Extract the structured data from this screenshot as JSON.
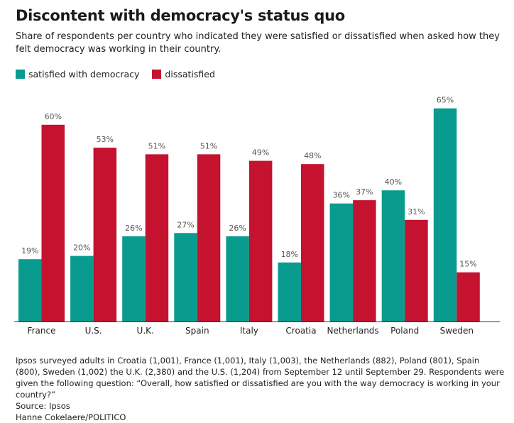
{
  "title": "Discontent with democracy's status quo",
  "subtitle": "Share of respondents per country who indicated they were satisfied or dissatisfied when asked how they felt democracy was working in their country.",
  "legend": {
    "satisfied": {
      "label": "satisfied with democracy",
      "color": "#0a9b8f"
    },
    "dissatisfied": {
      "label": "dissatisfied",
      "color": "#c4122f"
    }
  },
  "chart_data": {
    "type": "bar",
    "title": "Discontent with democracy's status quo",
    "xlabel": "",
    "ylabel": "",
    "ylim": [
      0,
      70
    ],
    "grid": false,
    "legend_position": "top-left",
    "categories": [
      "France",
      "U.S.",
      "U.K.",
      "Spain",
      "Italy",
      "Croatia",
      "Netherlands",
      "Poland",
      "Sweden"
    ],
    "series": [
      {
        "name": "satisfied with democracy",
        "color": "#0a9b8f",
        "values": [
          19,
          20,
          26,
          27,
          26,
          18,
          36,
          40,
          65
        ]
      },
      {
        "name": "dissatisfied",
        "color": "#c4122f",
        "values": [
          60,
          53,
          51,
          51,
          49,
          48,
          37,
          31,
          15
        ]
      }
    ],
    "value_suffix": "%"
  },
  "footer": {
    "note": "Ipsos surveyed adults in Croatia (1,001), France (1,001), Italy (1,003), the Netherlands (882), Poland (801), Spain (800), Sweden (1,002) the U.K. (2,380) and the U.S. (1,204) from September 12 until September 29. Respondents were given the following question: “Overall, how satisfied or dissatisfied are you with the way democracy is working in your country?”",
    "source": "Source: Ipsos",
    "credit": "Hanne Cokelaere/POLITICO"
  }
}
